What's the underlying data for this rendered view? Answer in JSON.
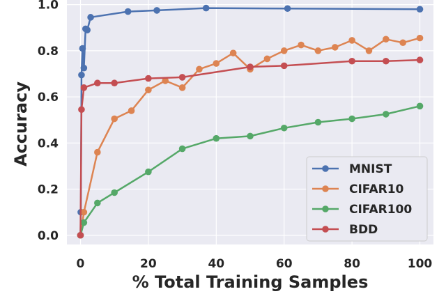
{
  "chart_data": {
    "type": "line",
    "title": "",
    "xlabel": "% Total Training Samples",
    "ylabel": "Accuracy",
    "xlim": [
      -4,
      104
    ],
    "ylim": [
      -0.04,
      1.02
    ],
    "x_ticks": [
      0,
      20,
      40,
      60,
      80,
      100
    ],
    "y_ticks": [
      0.0,
      0.2,
      0.4,
      0.6,
      0.8,
      1.0
    ],
    "x_tick_labels": [
      "0",
      "20",
      "40",
      "60",
      "80",
      "100"
    ],
    "y_tick_labels": [
      "0.0",
      "0.2",
      "0.4",
      "0.6",
      "0.8",
      "1.0"
    ],
    "grid": true,
    "legend_position": "lower-right",
    "series": [
      {
        "name": "MNIST",
        "color": "#4c72b0",
        "x": [
          0,
          0.1,
          0.3,
          0.6,
          1,
          1.5,
          2,
          3,
          14,
          22.5,
          37,
          61,
          100
        ],
        "y": [
          0.0,
          0.1,
          0.695,
          0.81,
          0.725,
          0.895,
          0.89,
          0.945,
          0.97,
          0.975,
          0.985,
          0.983,
          0.98
        ]
      },
      {
        "name": "CIFAR10",
        "color": "#dd8452",
        "x": [
          0,
          1,
          5,
          10,
          15,
          20,
          25,
          30,
          35,
          40,
          45,
          50,
          55,
          60,
          65,
          70,
          75,
          80,
          85,
          90,
          95,
          100
        ],
        "y": [
          0.0,
          0.1,
          0.36,
          0.505,
          0.54,
          0.63,
          0.67,
          0.64,
          0.72,
          0.745,
          0.79,
          0.72,
          0.765,
          0.8,
          0.825,
          0.8,
          0.815,
          0.845,
          0.8,
          0.85,
          0.835,
          0.855
        ]
      },
      {
        "name": "CIFAR100",
        "color": "#55a868",
        "x": [
          0,
          1,
          5,
          10,
          20,
          30,
          40,
          50,
          60,
          70,
          80,
          90,
          100
        ],
        "y": [
          0.0,
          0.055,
          0.14,
          0.185,
          0.275,
          0.375,
          0.42,
          0.43,
          0.465,
          0.49,
          0.505,
          0.525,
          0.56
        ]
      },
      {
        "name": "BDD",
        "color": "#c44e52",
        "x": [
          0,
          0.3,
          1,
          5,
          10,
          20,
          30,
          50,
          60,
          80,
          90,
          100
        ],
        "y": [
          0.0,
          0.545,
          0.64,
          0.66,
          0.66,
          0.68,
          0.685,
          0.73,
          0.735,
          0.755,
          0.755,
          0.76
        ]
      }
    ]
  }
}
